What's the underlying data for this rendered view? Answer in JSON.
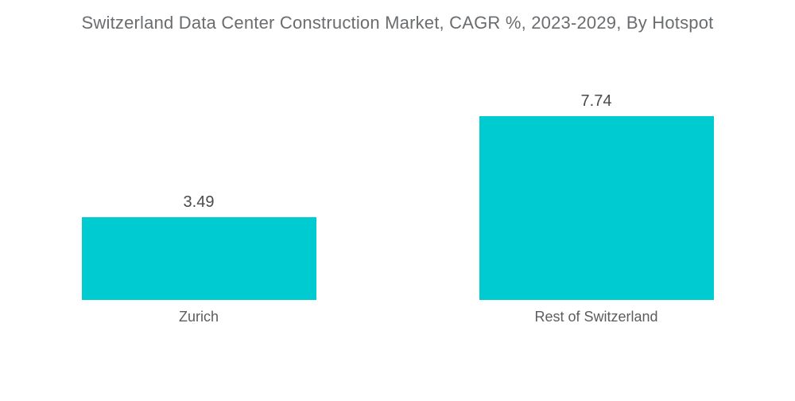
{
  "title": "Switzerland Data Center Construction Market, CAGR %, 2023-2029, By Hotspot",
  "colors": {
    "background": "#FFFFFF",
    "bar": "#00CBD1",
    "title_text": "#6A6D70",
    "value_label_text": "#4A4A4A",
    "category_label_text": "#5A5D60"
  },
  "chart_data": {
    "type": "bar",
    "title": "Switzerland Data Center Construction Market, CAGR %, 2023-2029, By Hotspot",
    "categories": [
      "Zurich",
      "Rest of Switzerland"
    ],
    "values": [
      3.49,
      7.74
    ],
    "value_labels": [
      "3.49",
      "7.74"
    ],
    "xlabel": "",
    "ylabel": "",
    "ylim": [
      0,
      8.4
    ],
    "grid": false,
    "legend": false,
    "axes_visible": false,
    "bar_color": "#00CBD1",
    "orientation": "vertical"
  }
}
